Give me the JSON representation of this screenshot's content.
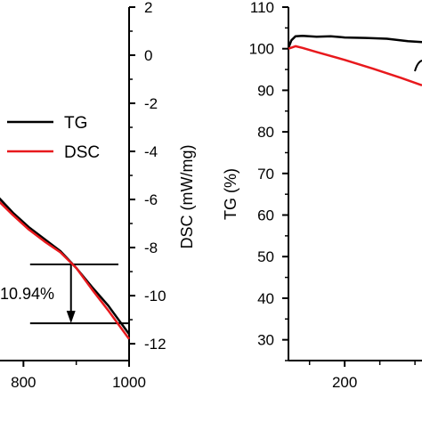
{
  "chart_data": [
    {
      "type": "line",
      "panel": "left (cropped)",
      "x_ticks": [
        "800",
        "1000"
      ],
      "x_tick_values": [
        800,
        1000
      ],
      "xlim": [
        700,
        1000
      ],
      "right_axis": {
        "ylabel": "DSC (mW/mg)",
        "ylim": [
          -12.7,
          2
        ],
        "ticks": [
          "2",
          "0",
          "-2",
          "-4",
          "-6",
          "-8",
          "-10",
          "-12"
        ],
        "tick_values": [
          2,
          0,
          -2,
          -4,
          -6,
          -8,
          -10,
          -12
        ]
      },
      "left_axis_ylim": [
        -12.7,
        2
      ],
      "legend": {
        "placement": "middle-right",
        "entries": [
          {
            "label": "TG",
            "color": "#000000"
          },
          {
            "label": "DSC",
            "color": "#e8191d"
          }
        ]
      },
      "annotation": {
        "text": "10.94%",
        "upper_level": -8.7,
        "lower_level": -11.15,
        "arrow_x": 890,
        "line_from_x": 880,
        "line_to_x": 1000
      },
      "series": [
        {
          "name": "TG",
          "color": "#000000",
          "x": [
            702,
            720,
            750,
            780,
            810,
            840,
            870,
            900,
            930,
            960,
            1000
          ],
          "y": [
            -4.55,
            -5.05,
            -5.85,
            -6.55,
            -7.15,
            -7.65,
            -8.15,
            -8.85,
            -9.65,
            -10.4,
            -11.6
          ]
        },
        {
          "name": "DSC",
          "color": "#e8191d",
          "x": [
            700,
            720,
            750,
            780,
            810,
            840,
            870,
            900,
            930,
            960,
            1000
          ],
          "y": [
            -5.0,
            -5.3,
            -6.0,
            -6.65,
            -7.25,
            -7.75,
            -8.2,
            -8.85,
            -9.75,
            -10.6,
            -11.8
          ]
        }
      ]
    },
    {
      "type": "line",
      "panel": "right (cropped)",
      "ylabel": "TG (%)",
      "ylim": [
        25,
        110
      ],
      "y_ticks": [
        "110",
        "100",
        "90",
        "80",
        "70",
        "60",
        "50",
        "40",
        "30"
      ],
      "y_tick_values": [
        110,
        100,
        90,
        80,
        70,
        60,
        50,
        40,
        30
      ],
      "xlim": [
        120,
        310
      ],
      "x_ticks": [
        "200"
      ],
      "x_tick_values": [
        200
      ],
      "series": [
        {
          "color": "#000000",
          "x": [
            120,
            124,
            130,
            140,
            160,
            180,
            200,
            230,
            260,
            290,
            310
          ],
          "y": [
            100.2,
            102.0,
            103.0,
            103.1,
            102.9,
            103.0,
            102.7,
            102.6,
            102.4,
            101.8,
            101.6
          ]
        },
        {
          "color": "#e8191d",
          "x": [
            120,
            130,
            140,
            160,
            200,
            240,
            280,
            310
          ],
          "y": [
            100.0,
            100.6,
            100.2,
            99.2,
            97.3,
            95.2,
            93.0,
            91.2
          ]
        }
      ]
    }
  ]
}
